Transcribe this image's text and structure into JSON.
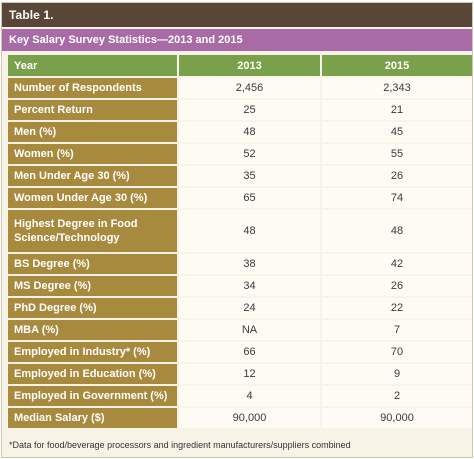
{
  "table_label": "Table 1.",
  "caption": "Key Salary Survey Statistics—2013 and 2015",
  "header": {
    "label": "Year",
    "col1": "2013",
    "col2": "2015"
  },
  "rows": [
    {
      "label": "Number of Respondents",
      "v2013": "2,456",
      "v2015": "2,343"
    },
    {
      "label": "Percent Return",
      "v2013": "25",
      "v2015": "21"
    },
    {
      "label": "Men (%)",
      "v2013": "48",
      "v2015": "45"
    },
    {
      "label": "Women (%)",
      "v2013": "52",
      "v2015": "55"
    },
    {
      "label": "Men Under Age 30 (%)",
      "v2013": "35",
      "v2015": "26"
    },
    {
      "label": "Women Under Age 30 (%)",
      "v2013": "65",
      "v2015": "74"
    },
    {
      "label": "Highest Degree in Food Science/Technology",
      "v2013": "48",
      "v2015": "48"
    },
    {
      "label": "BS Degree (%)",
      "v2013": "38",
      "v2015": "42"
    },
    {
      "label": "MS Degree (%)",
      "v2013": "34",
      "v2015": "26"
    },
    {
      "label": "PhD Degree (%)",
      "v2013": "24",
      "v2015": "22"
    },
    {
      "label": "MBA (%)",
      "v2013": "NA",
      "v2015": "7"
    },
    {
      "label": "Employed in Industry* (%)",
      "v2013": "66",
      "v2015": "70"
    },
    {
      "label": "Employed in Education (%)",
      "v2013": "12",
      "v2015": "9"
    },
    {
      "label": "Employed in Government (%)",
      "v2013": "4",
      "v2015": "2"
    },
    {
      "label": "Median Salary ($)",
      "v2013": "90,000",
      "v2015": "90,000"
    }
  ],
  "footnote": "*Data for food/beverage processors and ingredient manufacturers/suppliers combined"
}
